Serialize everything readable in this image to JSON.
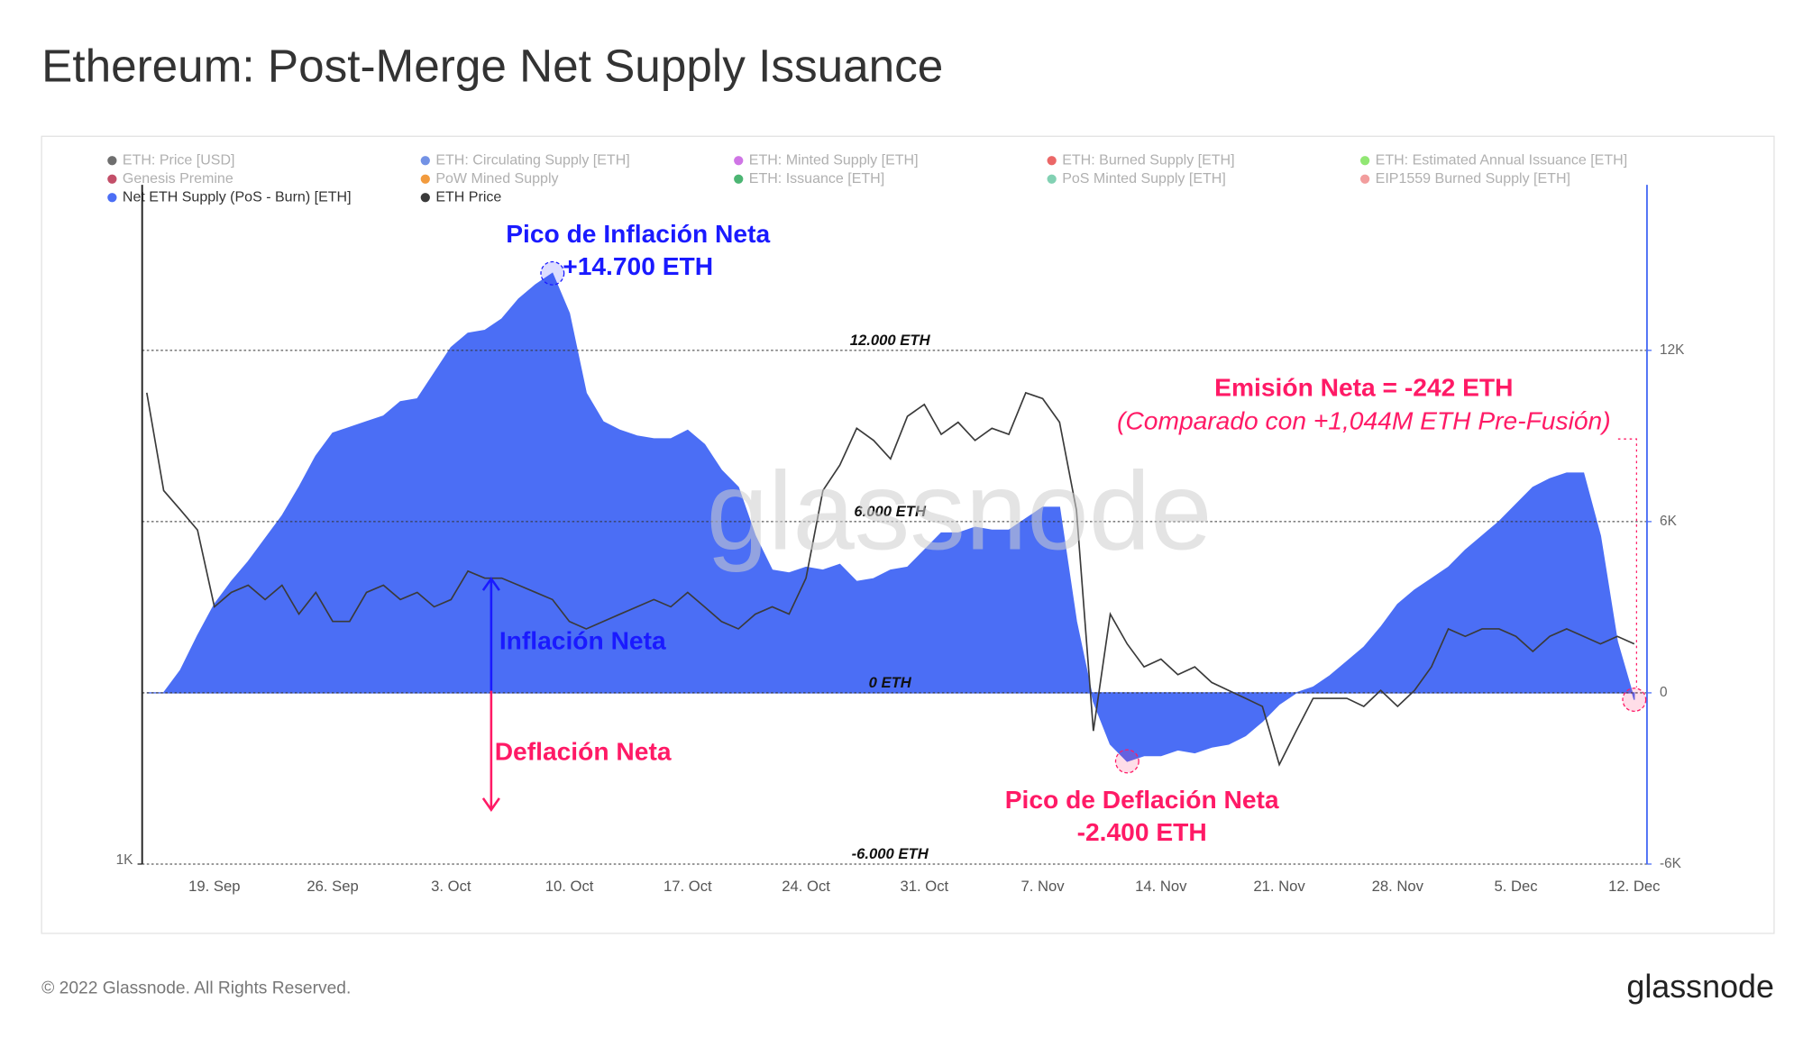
{
  "chart_data": {
    "type": "area-line",
    "title": "Ethereum: Post-Merge Net Supply Issuance",
    "categories": [
      null,
      null,
      null,
      null,
      "19. Sep",
      null,
      null,
      null,
      null,
      null,
      null,
      "26. Sep",
      null,
      null,
      null,
      null,
      null,
      null,
      "3. Oct",
      null,
      null,
      null,
      null,
      null,
      null,
      "10. Oct",
      null,
      null,
      null,
      null,
      null,
      null,
      "17. Oct",
      null,
      null,
      null,
      null,
      null,
      null,
      "24. Oct",
      null,
      null,
      null,
      null,
      null,
      null,
      "31. Oct",
      null,
      null,
      null,
      null,
      null,
      null,
      "7. Nov",
      null,
      null,
      null,
      null,
      null,
      null,
      "14. Nov",
      null,
      null,
      null,
      null,
      null,
      null,
      "21. Nov",
      null,
      null,
      null,
      null,
      null,
      null,
      "28. Nov",
      null,
      null,
      null,
      null,
      null,
      null,
      "5. Dec",
      null,
      null,
      null,
      null,
      null,
      null,
      "12. Dec"
    ],
    "series": [
      {
        "name": "Net ETH Supply (PoS - Burn) [ETH]",
        "color": "#4b6ef5",
        "kind": "area",
        "axis": "y2",
        "values": [
          0,
          0,
          800,
          2000,
          3100,
          3900,
          4600,
          5400,
          6200,
          7200,
          8300,
          9100,
          9300,
          9500,
          9700,
          10200,
          10300,
          11200,
          12100,
          12600,
          12700,
          13100,
          13800,
          14300,
          14700,
          13300,
          10500,
          9500,
          9200,
          9000,
          8900,
          8900,
          9200,
          8700,
          7800,
          7200,
          5500,
          4300,
          4200,
          4400,
          4300,
          4500,
          3900,
          4000,
          4300,
          4400,
          5000,
          5600,
          5600,
          5800,
          5700,
          5700,
          6100,
          6500,
          6500,
          2500,
          -300,
          -1800,
          -2400,
          -2200,
          -2200,
          -2000,
          -2100,
          -1900,
          -1800,
          -1500,
          -1000,
          -400,
          0,
          200,
          600,
          1100,
          1600,
          2300,
          3100,
          3600,
          4000,
          4400,
          5000,
          5500,
          6000,
          6600,
          7200,
          7500,
          7700,
          7700,
          5500,
          1800,
          -242
        ]
      },
      {
        "name": "ETH Price",
        "color": "#3a3a3a",
        "kind": "line",
        "axis": "y",
        "values": [
          1640,
          1480,
          1450,
          1420,
          1310,
          1330,
          1340,
          1320,
          1340,
          1300,
          1330,
          1290,
          1290,
          1330,
          1340,
          1320,
          1330,
          1310,
          1320,
          1360,
          1350,
          1350,
          1340,
          1330,
          1320,
          1290,
          1280,
          1290,
          1300,
          1310,
          1320,
          1310,
          1330,
          1310,
          1290,
          1280,
          1300,
          1310,
          1300,
          1350,
          1480,
          1520,
          1580,
          1560,
          1530,
          1600,
          1620,
          1570,
          1590,
          1560,
          1580,
          1570,
          1640,
          1630,
          1590,
          1450,
          1150,
          1300,
          1260,
          1230,
          1240,
          1220,
          1230,
          1210,
          1200,
          1190,
          1180,
          1110,
          1150,
          1190,
          1190,
          1190,
          1180,
          1200,
          1180,
          1200,
          1230,
          1280,
          1270,
          1280,
          1280,
          1270,
          1250,
          1270,
          1280,
          1270,
          1260,
          1270,
          1260
        ]
      }
    ],
    "inactive_legend": [
      {
        "name": "ETH: Price [USD]",
        "color": "#555555"
      },
      {
        "name": "ETH: Circulating Supply [ETH]",
        "color": "#5b7fe0"
      },
      {
        "name": "ETH: Minted Supply [ETH]",
        "color": "#c75de0"
      },
      {
        "name": "ETH: Burned Supply [ETH]",
        "color": "#e84c4c"
      },
      {
        "name": "ETH: Estimated Annual Issuance [ETH]",
        "color": "#7ee35a"
      },
      {
        "name": "Genesis Premine",
        "color": "#b8304f"
      },
      {
        "name": "PoW Mined Supply",
        "color": "#f08a1c"
      },
      {
        "name": "ETH: Issuance [ETH]",
        "color": "#2da85a"
      },
      {
        "name": "PoS Minted Supply [ETH]",
        "color": "#6cc9a6"
      },
      {
        "name": "EIP1559 Burned Supply [ETH]",
        "color": "#f08c8c"
      }
    ],
    "ylim": [
      1000,
      2040
    ],
    "ylog": true,
    "yticks": [
      {
        "value": 1000,
        "label": "1K"
      }
    ],
    "y2lim": [
      -6000,
      17800
    ],
    "y2ticks": [
      {
        "value": -6000,
        "label": "-6K"
      },
      0,
      {
        "value": 6000,
        "label": "6K"
      },
      {
        "value": 12000,
        "label": "12K"
      }
    ],
    "reference_lines": [
      {
        "value": 12000,
        "label": "12.000 ETH"
      },
      {
        "value": 6000,
        "label": "6.000 ETH"
      },
      {
        "value": 0,
        "label": "0 ETH"
      },
      {
        "value": -6000,
        "label": "-6.000 ETH"
      }
    ],
    "annotations": [
      "Pico de Inflación Neta",
      "+14.700 ETH",
      "Emisión Neta = -242 ETH",
      "(Comparado con +1,044M ETH Pre-Fusión)",
      "Inflación Neta",
      "Deflación Neta",
      "Pico de Deflación Neta",
      "-2.400 ETH"
    ],
    "watermark": "glassnode"
  },
  "footer": {
    "copyright": "© 2022 Glassnode. All Rights Reserved.",
    "logo": "glassnode"
  }
}
